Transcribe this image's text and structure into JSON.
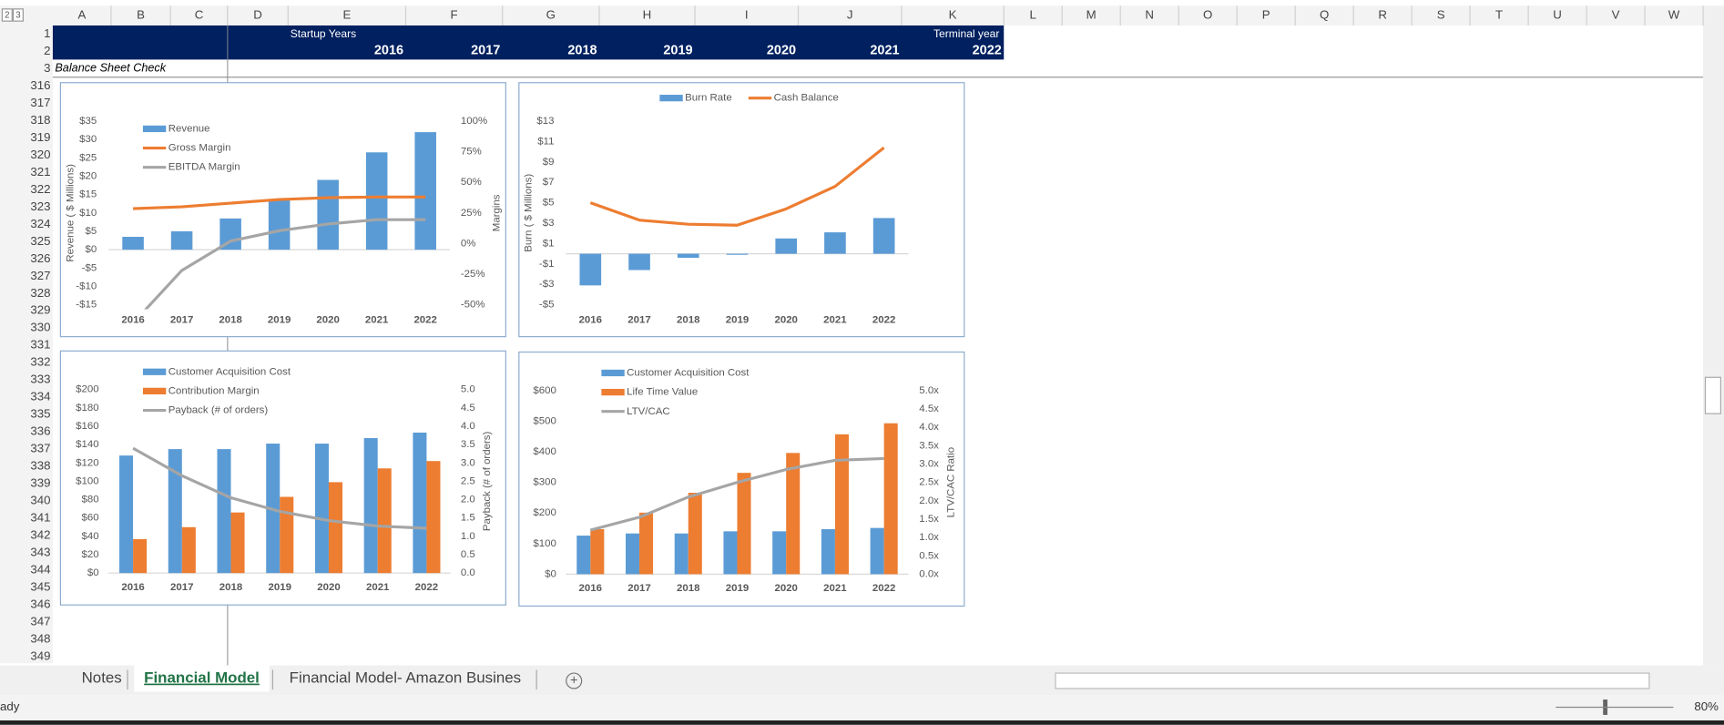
{
  "spreadsheet": {
    "outline_levels": [
      "2",
      "3"
    ],
    "columns": [
      "A",
      "B",
      "C",
      "D",
      "E",
      "F",
      "G",
      "H",
      "I",
      "J",
      "K",
      "L",
      "M",
      "N",
      "O",
      "P",
      "Q",
      "R",
      "S",
      "T",
      "U",
      "V",
      "W"
    ],
    "rows": [
      1,
      2,
      3,
      316,
      317,
      318,
      319,
      320,
      321,
      322,
      323,
      324,
      325,
      326,
      327,
      328,
      329,
      330,
      331,
      332,
      333,
      334,
      335,
      336,
      337,
      338,
      339,
      340,
      341,
      342,
      343,
      344,
      345,
      346,
      347,
      348,
      349
    ],
    "header": {
      "startup_label": "Startup Years",
      "terminal_label": "Terminal year",
      "years": [
        2016,
        2017,
        2018,
        2019,
        2020,
        2021,
        2022
      ]
    },
    "section": "Balance Sheet Check",
    "tabs": [
      "Notes",
      "Financial Model",
      "Financial Model- Amazon Busines"
    ],
    "active_tab": 1,
    "status": {
      "mode": "ady",
      "zoom": "80%"
    }
  },
  "chart_data": [
    {
      "type": "combo",
      "legend": "upper left",
      "y_label": "Revenue ( $ Millions)",
      "y2_label": "Margins",
      "categories": [
        "2016",
        "2017",
        "2018",
        "2019",
        "2020",
        "2021",
        "2022"
      ],
      "ylim": [
        -15,
        35
      ],
      "yticks": [
        {
          "value": -15,
          "label": "-$15"
        },
        {
          "value": -10,
          "label": "-$10"
        },
        {
          "value": -5,
          "label": "-$5"
        },
        {
          "value": 0,
          "label": "$0"
        },
        {
          "value": 5,
          "label": "$5"
        },
        {
          "value": 10,
          "label": "$10"
        },
        {
          "value": 15,
          "label": "$15"
        },
        {
          "value": 20,
          "label": "$20"
        },
        {
          "value": 25,
          "label": "$25"
        },
        {
          "value": 30,
          "label": "$30"
        },
        {
          "value": 35,
          "label": "$35"
        }
      ],
      "y2lim": [
        -50,
        100
      ],
      "y2ticks": [
        {
          "value": -50,
          "label": "-50%"
        },
        {
          "value": -25,
          "label": "-25%"
        },
        {
          "value": 0,
          "label": "0%"
        },
        {
          "value": 25,
          "label": "25%"
        },
        {
          "value": 50,
          "label": "50%"
        },
        {
          "value": 75,
          "label": "75%"
        },
        {
          "value": 100,
          "label": "100%"
        }
      ],
      "series": [
        {
          "name": "Revenue",
          "kind": "bar",
          "color": "#5b9bd5",
          "values": [
            3.5,
            5,
            8.5,
            13.5,
            19,
            26.5,
            32
          ]
        },
        {
          "name": "Gross Margin",
          "kind": "line",
          "axis": "y2",
          "color": "#ed7d31",
          "values": [
            28.5,
            30,
            33,
            36,
            37.5,
            38,
            38
          ]
        },
        {
          "name": "EBITDA Margin",
          "kind": "line",
          "axis": "y2",
          "color": "#a5a5a5",
          "values": [
            -65,
            -22,
            2,
            10.5,
            16,
            19.5,
            19.5
          ]
        }
      ]
    },
    {
      "type": "combo",
      "legend": "top",
      "y_label": "Burn ( $ Millions)",
      "categories": [
        "2016",
        "2017",
        "2018",
        "2019",
        "2020",
        "2021",
        "2022"
      ],
      "ylim": [
        -5,
        13
      ],
      "yticks": [
        {
          "value": -5,
          "label": "-$5"
        },
        {
          "value": -3,
          "label": "-$3"
        },
        {
          "value": -1,
          "label": "-$1"
        },
        {
          "value": 1,
          "label": "$1"
        },
        {
          "value": 3,
          "label": "$3"
        },
        {
          "value": 5,
          "label": "$5"
        },
        {
          "value": 7,
          "label": "$7"
        },
        {
          "value": 9,
          "label": "$9"
        },
        {
          "value": 11,
          "label": "$11"
        },
        {
          "value": 13,
          "label": "$13"
        }
      ],
      "series": [
        {
          "name": "Burn Rate",
          "kind": "bar",
          "color": "#5b9bd5",
          "values": [
            -3.1,
            -1.6,
            -0.4,
            -0.1,
            1.5,
            2.1,
            3.5
          ]
        },
        {
          "name": "Cash Balance",
          "kind": "line",
          "color": "#ed7d31",
          "values": [
            5,
            3.3,
            2.9,
            2.8,
            4.4,
            6.6,
            10.4
          ]
        }
      ]
    },
    {
      "type": "combo",
      "legend": "upper left",
      "y2_label": "Payback (# of orders)",
      "categories": [
        "2016",
        "2017",
        "2018",
        "2019",
        "2020",
        "2021",
        "2022"
      ],
      "ylim": [
        0,
        200
      ],
      "yticks": [
        {
          "value": 0,
          "label": "$0"
        },
        {
          "value": 20,
          "label": "$20"
        },
        {
          "value": 40,
          "label": "$40"
        },
        {
          "value": 60,
          "label": "$60"
        },
        {
          "value": 80,
          "label": "$80"
        },
        {
          "value": 100,
          "label": "$100"
        },
        {
          "value": 120,
          "label": "$120"
        },
        {
          "value": 140,
          "label": "$140"
        },
        {
          "value": 160,
          "label": "$160"
        },
        {
          "value": 180,
          "label": "$180"
        },
        {
          "value": 200,
          "label": "$200"
        }
      ],
      "y2lim": [
        0,
        5
      ],
      "y2ticks": [
        {
          "value": 0,
          "label": "0.0"
        },
        0.5,
        {
          "value": 1,
          "label": "1.0"
        },
        1.5,
        {
          "value": 2,
          "label": "2.0"
        },
        2.5,
        {
          "value": 3,
          "label": "3.0"
        },
        3.5,
        {
          "value": 4,
          "label": "4.0"
        },
        4.5,
        {
          "value": 5,
          "label": "5.0"
        }
      ],
      "series": [
        {
          "name": "Customer Acquisition Cost",
          "kind": "bar",
          "color": "#5b9bd5",
          "values": [
            128,
            135,
            135,
            141,
            141,
            147,
            153
          ]
        },
        {
          "name": "Contribution Margin",
          "kind": "bar",
          "color": "#ed7d31",
          "values": [
            37,
            50,
            66,
            83,
            99,
            114,
            122
          ]
        },
        {
          "name": "Payback (# of orders)",
          "kind": "line",
          "axis": "y2",
          "color": "#a5a5a5",
          "values": [
            3.4,
            2.65,
            2.05,
            1.68,
            1.43,
            1.28,
            1.22
          ]
        }
      ]
    },
    {
      "type": "combo",
      "legend": "upper left",
      "y2_label": "LTV/CAC Ratio",
      "categories": [
        "2016",
        "2017",
        "2018",
        "2019",
        "2020",
        "2021",
        "2022"
      ],
      "ylim": [
        0,
        600
      ],
      "yticks": [
        {
          "value": 0,
          "label": "$0"
        },
        {
          "value": 100,
          "label": "$100"
        },
        {
          "value": 200,
          "label": "$200"
        },
        {
          "value": 300,
          "label": "$300"
        },
        {
          "value": 400,
          "label": "$400"
        },
        {
          "value": 500,
          "label": "$500"
        },
        {
          "value": 600,
          "label": "$600"
        }
      ],
      "y2lim": [
        0,
        5
      ],
      "y2ticks": [
        {
          "value": 0,
          "label": "0.0x"
        },
        {
          "value": 0.5,
          "label": "0.5x"
        },
        {
          "value": 1,
          "label": "1.0x"
        },
        {
          "value": 1.5,
          "label": "1.5x"
        },
        {
          "value": 2,
          "label": "2.0x"
        },
        {
          "value": 2.5,
          "label": "2.5x"
        },
        {
          "value": 3,
          "label": "3.0x"
        },
        {
          "value": 3.5,
          "label": "3.5x"
        },
        {
          "value": 4,
          "label": "4.0x"
        },
        {
          "value": 4.5,
          "label": "4.5x"
        },
        {
          "value": 5,
          "label": "5.0x"
        }
      ],
      "series": [
        {
          "name": "Customer Acquisition Cost",
          "kind": "bar",
          "color": "#5b9bd5",
          "values": [
            126,
            133,
            133,
            140,
            140,
            147,
            151
          ]
        },
        {
          "name": "Life Time Value",
          "kind": "bar",
          "color": "#ed7d31",
          "values": [
            147,
            201,
            266,
            331,
            396,
            457,
            493
          ]
        },
        {
          "name": "LTV/CAC",
          "kind": "line",
          "axis": "y2",
          "color": "#a5a5a5",
          "values": [
            1.2,
            1.55,
            2.1,
            2.5,
            2.85,
            3.1,
            3.15
          ]
        }
      ]
    }
  ]
}
